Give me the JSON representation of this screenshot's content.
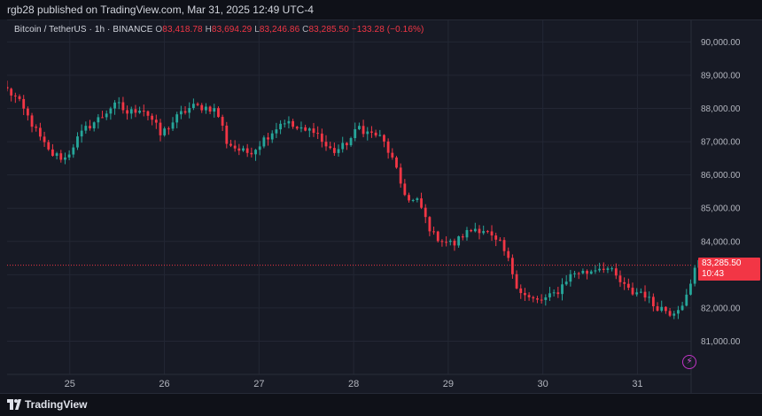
{
  "header": {
    "publish_line": "rgb28 published on TradingView.com, Mar 31, 2025 12:49 UTC-4"
  },
  "legend": {
    "symbol": "Bitcoin / TetherUS · 1h · BINANCE",
    "open_label": "O",
    "open_value": "83,418.78",
    "high_label": "H",
    "high_value": "83,694.29",
    "low_label": "L",
    "low_value": "83,246.86",
    "close_label": "C",
    "close_value": "83,285.50",
    "change_text": "−133.28 (−0.16%)"
  },
  "price_label": {
    "price": "83,285.50",
    "countdown": "10:43"
  },
  "footer": {
    "brand": "TradingView"
  },
  "colors": {
    "up": "#26a69a",
    "down": "#f23645",
    "background": "#171a25",
    "grid": "#232734",
    "axis_text": "#b2b5be",
    "accent_bolt": "#c234c7"
  },
  "icons": {
    "brand_logo": "tradingview-logo-icon",
    "bolt": "lightning-bolt-icon"
  },
  "chart_data": {
    "type": "candlestick",
    "interval": "1h",
    "ylim": [
      80000,
      90650
    ],
    "y_ticks": [
      90000,
      89000,
      88000,
      87000,
      86000,
      85000,
      84000,
      83000,
      82000,
      81000
    ],
    "y_tick_labels": [
      "90,000.00",
      "89,000.00",
      "88,000.00",
      "87,000.00",
      "86,000.00",
      "85,000.00",
      "84,000.00",
      "83,000.00",
      "82,000.00",
      "81,000.00"
    ],
    "x_tick_labels": [
      "25",
      "26",
      "27",
      "28",
      "29",
      "30",
      "31"
    ],
    "x_tick_days": [
      1,
      2,
      3,
      4,
      5,
      6,
      7
    ],
    "days_range": [
      0.0,
      7.23
    ],
    "current_price": 83285.5,
    "series_path": [
      [
        0.0,
        88550
      ],
      [
        0.1,
        88300
      ],
      [
        0.25,
        87600
      ],
      [
        0.35,
        87100
      ],
      [
        0.45,
        86650
      ],
      [
        0.55,
        86550
      ],
      [
        0.62,
        86500
      ],
      [
        0.72,
        87000
      ],
      [
        0.85,
        87450
      ],
      [
        1.0,
        87750
      ],
      [
        1.1,
        88050
      ],
      [
        1.2,
        88100
      ],
      [
        1.25,
        87850
      ],
      [
        1.32,
        87900
      ],
      [
        1.42,
        88050
      ],
      [
        1.55,
        87600
      ],
      [
        1.62,
        87200
      ],
      [
        1.72,
        87500
      ],
      [
        1.82,
        87800
      ],
      [
        1.95,
        88050
      ],
      [
        2.05,
        88050
      ],
      [
        2.18,
        88000
      ],
      [
        2.25,
        87700
      ],
      [
        2.32,
        87000
      ],
      [
        2.42,
        86800
      ],
      [
        2.52,
        86650
      ],
      [
        2.62,
        86800
      ],
      [
        2.72,
        87100
      ],
      [
        2.82,
        87350
      ],
      [
        2.92,
        87650
      ],
      [
        3.05,
        87400
      ],
      [
        3.15,
        87300
      ],
      [
        3.25,
        87400
      ],
      [
        3.35,
        86900
      ],
      [
        3.45,
        86700
      ],
      [
        3.55,
        86850
      ],
      [
        3.65,
        87150
      ],
      [
        3.72,
        87450
      ],
      [
        3.82,
        87250
      ],
      [
        3.92,
        87200
      ],
      [
        4.0,
        86900
      ],
      [
        4.08,
        86400
      ],
      [
        4.15,
        85800
      ],
      [
        4.25,
        85200
      ],
      [
        4.35,
        85200
      ],
      [
        4.42,
        84700
      ],
      [
        4.5,
        84200
      ],
      [
        4.6,
        84050
      ],
      [
        4.72,
        83900
      ],
      [
        4.82,
        84200
      ],
      [
        4.95,
        84400
      ],
      [
        5.05,
        84350
      ],
      [
        5.15,
        84000
      ],
      [
        5.22,
        83900
      ],
      [
        5.3,
        83400
      ],
      [
        5.4,
        82600
      ],
      [
        5.5,
        82300
      ],
      [
        5.6,
        82200
      ],
      [
        5.72,
        82300
      ],
      [
        5.82,
        82500
      ],
      [
        5.92,
        82900
      ],
      [
        6.02,
        83100
      ],
      [
        6.12,
        83050
      ],
      [
        6.22,
        83200
      ],
      [
        6.32,
        83250
      ],
      [
        6.4,
        83050
      ],
      [
        6.5,
        82700
      ],
      [
        6.6,
        82450
      ],
      [
        6.72,
        82500
      ],
      [
        6.82,
        82100
      ],
      [
        6.92,
        82000
      ],
      [
        7.02,
        81850
      ],
      [
        7.12,
        82100
      ],
      [
        7.2,
        82400
      ],
      [
        7.3,
        83500
      ],
      [
        7.4,
        83300
      ]
    ]
  }
}
